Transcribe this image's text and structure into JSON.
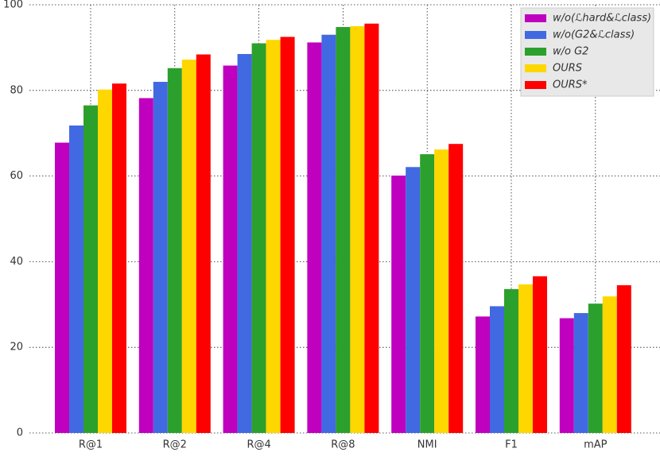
{
  "chart_data": {
    "type": "bar",
    "categories": [
      "R@1",
      "R@2",
      "R@4",
      "R@8",
      "NMI",
      "F1",
      "mAP"
    ],
    "series": [
      {
        "name": "w/o(ℒhard&ℒclass)",
        "color": "#bf00bf",
        "values": [
          67.8,
          78.2,
          85.8,
          91.2,
          60.1,
          27.2,
          26.8
        ]
      },
      {
        "name": "w/o(G2&ℒclass)",
        "color": "#4169e1",
        "values": [
          71.8,
          82.0,
          88.5,
          93.0,
          62.1,
          29.6,
          28.0
        ]
      },
      {
        "name": "w/o G2",
        "color": "#2ca02c",
        "values": [
          76.5,
          85.2,
          91.0,
          94.8,
          65.1,
          33.6,
          30.2
        ]
      },
      {
        "name": "OURS",
        "color": "#ffd700",
        "values": [
          80.2,
          87.2,
          91.8,
          95.0,
          66.2,
          34.7,
          31.9
        ]
      },
      {
        "name": "OURS*",
        "color": "#ff0000",
        "values": [
          81.6,
          88.4,
          92.5,
          95.6,
          67.5,
          36.6,
          34.5
        ]
      }
    ],
    "ylim": [
      0,
      100
    ],
    "yticks": [
      0,
      20,
      40,
      60,
      80,
      100
    ],
    "grid": true,
    "legend": "upper right"
  }
}
